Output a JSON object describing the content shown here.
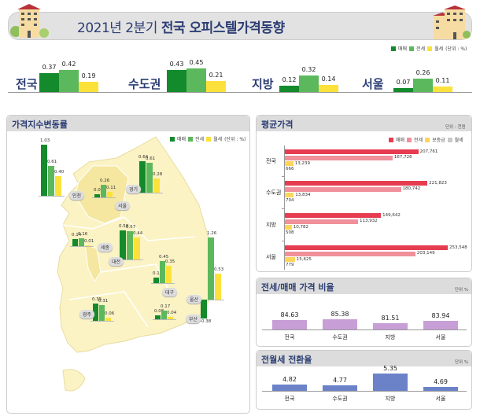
{
  "header": {
    "title_light": "2021년 2분기 ",
    "title_bold": "전국 오피스텔가격동향"
  },
  "legend": {
    "sale": "매매",
    "jeonse": "전세",
    "monthly": "월세",
    "unit": "(단위 : %)"
  },
  "colors": {
    "sale": "#138a2c",
    "jeonse": "#5cb85c",
    "monthly": "#fce13a",
    "avg_sale": "#e63c50",
    "avg_jeonse": "#f0909a",
    "avg_deposit": "#fcd55a",
    "avg_monthly": "#c8c8c8",
    "ratio": "#c79fd6",
    "conv": "#6b82c9"
  },
  "chart_data": [
    {
      "type": "bar",
      "title": "2021년 2분기 전국 오피스텔가격동향",
      "categories": [
        "전국",
        "수도권",
        "지방",
        "서울"
      ],
      "series": [
        {
          "name": "매매",
          "values": [
            0.37,
            0.43,
            0.12,
            0.07
          ]
        },
        {
          "name": "전세",
          "values": [
            0.42,
            0.45,
            0.32,
            0.26
          ]
        },
        {
          "name": "월세",
          "values": [
            0.19,
            0.21,
            0.14,
            0.11
          ]
        }
      ],
      "unit": "%"
    },
    {
      "type": "bar",
      "title": "가격지수변동률",
      "categories": [
        "인천",
        "서울",
        "경기",
        "세종",
        "대전",
        "대구",
        "울산",
        "광주",
        "부산"
      ],
      "series": [
        {
          "name": "매매",
          "values": [
            1.03,
            0.07,
            0.64,
            0.14,
            0.58,
            0.11,
            -0.38,
            0.35,
            0.08
          ]
        },
        {
          "name": "전세",
          "values": [
            0.61,
            0.26,
            0.61,
            0.16,
            0.57,
            0.45,
            1.26,
            0.31,
            0.17
          ]
        },
        {
          "name": "월세",
          "values": [
            0.4,
            0.11,
            0.28,
            0.01,
            0.44,
            0.35,
            0.53,
            0.06,
            0.04
          ]
        }
      ],
      "unit": "%"
    },
    {
      "type": "bar",
      "orientation": "horizontal",
      "title": "평균가격",
      "unit": "단위 : 천원",
      "categories": [
        "전국",
        "수도권",
        "지방",
        "서울"
      ],
      "legend": [
        "매매",
        "전세",
        "보증금",
        "월세"
      ],
      "series": [
        {
          "name": "매매",
          "values": [
            207761,
            221823,
            149642,
            253548
          ]
        },
        {
          "name": "전세",
          "values": [
            167726,
            180742,
            113932,
            203149
          ]
        },
        {
          "name": "보증금",
          "values": [
            13239,
            13834,
            10782,
            15625
          ]
        },
        {
          "name": "월세",
          "values": [
            666,
            704,
            508,
            779
          ]
        }
      ]
    },
    {
      "type": "bar",
      "title": "전세/매매 가격 비율",
      "unit": "단위 %",
      "categories": [
        "전국",
        "수도권",
        "지방",
        "서울"
      ],
      "values": [
        84.63,
        85.38,
        81.51,
        83.94
      ]
    },
    {
      "type": "bar",
      "title": "전월세 전환율",
      "unit": "단위 %",
      "categories": [
        "전국",
        "수도권",
        "지방",
        "서울"
      ],
      "values": [
        4.82,
        4.77,
        5.35,
        4.69
      ]
    }
  ]
}
